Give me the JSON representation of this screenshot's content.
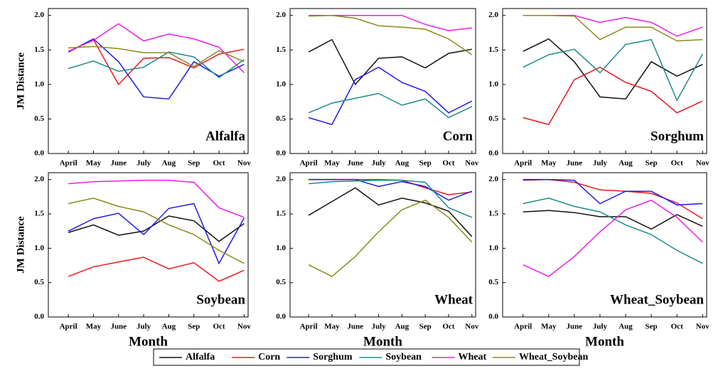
{
  "chart_data": [
    {
      "type": "line",
      "title": "Alfalfa",
      "ylabel": "JM Distance",
      "categories": [
        "April",
        "May",
        "June",
        "July",
        "Aug",
        "Sep",
        "Oct",
        "Nov"
      ],
      "ylim": [
        0,
        2.1
      ],
      "yticks": [
        {
          "value": 0,
          "label": "0.0"
        },
        {
          "value": 0.5,
          "label": "0.5"
        },
        {
          "value": 1,
          "label": "1.0"
        },
        {
          "value": 1.5,
          "label": "1.5"
        },
        {
          "value": 2,
          "label": "2.0"
        }
      ],
      "series": [
        {
          "name": "Corn",
          "color": "#e8191d",
          "values": [
            1.47,
            1.65,
            1.0,
            1.38,
            1.39,
            1.24,
            1.44,
            1.51
          ]
        },
        {
          "name": "Sorghum",
          "color": "#1d1de8",
          "values": [
            1.47,
            1.66,
            1.33,
            0.82,
            0.79,
            1.33,
            1.12,
            1.29
          ]
        },
        {
          "name": "Soybean",
          "color": "#1f8a8a",
          "values": [
            1.23,
            1.34,
            1.19,
            1.25,
            1.47,
            1.4,
            1.1,
            1.36
          ]
        },
        {
          "name": "Wheat",
          "color": "#ea1dea",
          "values": [
            1.48,
            1.64,
            1.88,
            1.63,
            1.73,
            1.66,
            1.54,
            1.17
          ]
        },
        {
          "name": "Wheat_Soybean",
          "color": "#8a8a1c",
          "values": [
            1.53,
            1.55,
            1.52,
            1.46,
            1.46,
            1.26,
            1.49,
            1.33
          ]
        }
      ]
    },
    {
      "type": "line",
      "title": "Corn",
      "categories": [
        "April",
        "May",
        "June",
        "July",
        "Aug",
        "Sep",
        "Oct",
        "Nov"
      ],
      "ylim": [
        0,
        2.1
      ],
      "yticks": [
        {
          "value": 0,
          "label": "0.0"
        },
        {
          "value": 0.5,
          "label": "0.5"
        },
        {
          "value": 1,
          "label": "1.0"
        },
        {
          "value": 1.5,
          "label": "1.5"
        },
        {
          "value": 2,
          "label": "2.0"
        }
      ],
      "series": [
        {
          "name": "Alfalfa",
          "color": "#111111",
          "values": [
            1.47,
            1.65,
            1.0,
            1.38,
            1.4,
            1.24,
            1.45,
            1.51
          ]
        },
        {
          "name": "Sorghum",
          "color": "#1d1de8",
          "values": [
            0.52,
            0.42,
            1.07,
            1.25,
            1.03,
            0.9,
            0.59,
            0.76
          ]
        },
        {
          "name": "Soybean",
          "color": "#1f8a8a",
          "values": [
            0.59,
            0.73,
            0.8,
            0.87,
            0.7,
            0.79,
            0.52,
            0.68
          ]
        },
        {
          "name": "Wheat",
          "color": "#ea1dea",
          "values": [
            2.0,
            2.0,
            2.0,
            2.0,
            2.0,
            1.87,
            1.78,
            1.82
          ]
        },
        {
          "name": "Wheat_Soybean",
          "color": "#8a8a1c",
          "values": [
            1.99,
            2.0,
            1.96,
            1.85,
            1.83,
            1.8,
            1.66,
            1.43
          ]
        }
      ]
    },
    {
      "type": "line",
      "title": "Sorghum",
      "categories": [
        "April",
        "May",
        "June",
        "July",
        "Aug",
        "Sep",
        "Oct",
        "Nov"
      ],
      "ylim": [
        0,
        2.1
      ],
      "yticks": [
        {
          "value": 0,
          "label": "0.0"
        },
        {
          "value": 0.5,
          "label": "0.5"
        },
        {
          "value": 1,
          "label": "1.0"
        },
        {
          "value": 1.5,
          "label": "1.5"
        },
        {
          "value": 2,
          "label": "2.0"
        }
      ],
      "series": [
        {
          "name": "Alfalfa",
          "color": "#111111",
          "values": [
            1.48,
            1.66,
            1.33,
            0.82,
            0.79,
            1.33,
            1.12,
            1.29
          ]
        },
        {
          "name": "Corn",
          "color": "#e8191d",
          "values": [
            0.52,
            0.42,
            1.07,
            1.25,
            1.03,
            0.9,
            0.59,
            0.76
          ]
        },
        {
          "name": "Soybean",
          "color": "#1f8a8a",
          "values": [
            1.25,
            1.43,
            1.51,
            1.17,
            1.58,
            1.65,
            0.77,
            1.44
          ]
        },
        {
          "name": "Wheat",
          "color": "#ea1dea",
          "values": [
            2.0,
            2.0,
            2.0,
            1.9,
            1.97,
            1.9,
            1.7,
            1.83
          ]
        },
        {
          "name": "Wheat_Soybean",
          "color": "#8a8a1c",
          "values": [
            2.0,
            2.0,
            1.99,
            1.65,
            1.83,
            1.83,
            1.63,
            1.65
          ]
        }
      ]
    },
    {
      "type": "line",
      "title": "Soybean",
      "ylabel": "JM Distance",
      "xlabel": "Month",
      "categories": [
        "April",
        "May",
        "June",
        "July",
        "Aug",
        "Sep",
        "Oct",
        "Nov"
      ],
      "ylim": [
        0,
        2.1
      ],
      "yticks": [
        {
          "value": 0,
          "label": "0.0"
        },
        {
          "value": 0.5,
          "label": "0.5"
        },
        {
          "value": 1,
          "label": "1.0"
        },
        {
          "value": 1.5,
          "label": "1.5"
        },
        {
          "value": 2,
          "label": "2.0"
        }
      ],
      "series": [
        {
          "name": "Alfalfa",
          "color": "#111111",
          "values": [
            1.23,
            1.34,
            1.19,
            1.25,
            1.47,
            1.4,
            1.1,
            1.36
          ]
        },
        {
          "name": "Corn",
          "color": "#e8191d",
          "values": [
            0.59,
            0.73,
            0.8,
            0.87,
            0.7,
            0.79,
            0.52,
            0.68
          ]
        },
        {
          "name": "Sorghum",
          "color": "#1d1de8",
          "values": [
            1.25,
            1.43,
            1.51,
            1.2,
            1.58,
            1.65,
            0.78,
            1.44
          ]
        },
        {
          "name": "Wheat",
          "color": "#ea1dea",
          "values": [
            1.94,
            1.97,
            1.98,
            1.99,
            1.99,
            1.96,
            1.59,
            1.45
          ]
        },
        {
          "name": "Wheat_Soybean",
          "color": "#8a8a1c",
          "values": [
            1.65,
            1.73,
            1.61,
            1.53,
            1.34,
            1.2,
            0.97,
            0.78
          ]
        }
      ]
    },
    {
      "type": "line",
      "title": "Wheat",
      "xlabel": "Month",
      "categories": [
        "April",
        "May",
        "June",
        "July",
        "Aug",
        "Sep",
        "Oct",
        "Nov"
      ],
      "ylim": [
        0,
        2.1
      ],
      "yticks": [
        {
          "value": 0,
          "label": "0.0"
        },
        {
          "value": 0.5,
          "label": "0.5"
        },
        {
          "value": 1,
          "label": "1.0"
        },
        {
          "value": 1.5,
          "label": "1.5"
        },
        {
          "value": 2,
          "label": "2.0"
        }
      ],
      "series": [
        {
          "name": "Alfalfa",
          "color": "#111111",
          "values": [
            1.48,
            1.68,
            1.88,
            1.63,
            1.73,
            1.66,
            1.54,
            1.17
          ]
        },
        {
          "name": "Corn",
          "color": "#e8191d",
          "values": [
            2.0,
            2.0,
            2.0,
            2.0,
            1.99,
            1.88,
            1.78,
            1.82
          ]
        },
        {
          "name": "Sorghum",
          "color": "#1d1de8",
          "values": [
            2.0,
            2.0,
            2.0,
            1.9,
            1.97,
            1.9,
            1.7,
            1.83
          ]
        },
        {
          "name": "Soybean",
          "color": "#1f8a8a",
          "values": [
            1.94,
            1.97,
            1.98,
            1.99,
            1.99,
            1.96,
            1.59,
            1.45
          ]
        },
        {
          "name": "Wheat_Soybean",
          "color": "#8a8a1c",
          "values": [
            0.76,
            0.59,
            0.88,
            1.24,
            1.56,
            1.7,
            1.45,
            1.09
          ]
        }
      ]
    },
    {
      "type": "line",
      "title": "Wheat_Soybean",
      "xlabel": "Month",
      "categories": [
        "April",
        "May",
        "June",
        "July",
        "Aug",
        "Sep",
        "Oct",
        "Nov"
      ],
      "ylim": [
        0,
        2.1
      ],
      "yticks": [
        {
          "value": 0,
          "label": "0.0"
        },
        {
          "value": 0.5,
          "label": "0.5"
        },
        {
          "value": 1,
          "label": "1.0"
        },
        {
          "value": 1.5,
          "label": "1.5"
        },
        {
          "value": 2,
          "label": "2.0"
        }
      ],
      "series": [
        {
          "name": "Alfalfa",
          "color": "#111111",
          "values": [
            1.53,
            1.55,
            1.52,
            1.46,
            1.46,
            1.28,
            1.49,
            1.32
          ]
        },
        {
          "name": "Corn",
          "color": "#e8191d",
          "values": [
            1.99,
            2.0,
            1.96,
            1.85,
            1.83,
            1.8,
            1.66,
            1.43
          ]
        },
        {
          "name": "Sorghum",
          "color": "#1d1de8",
          "values": [
            2.0,
            2.0,
            1.99,
            1.65,
            1.83,
            1.83,
            1.63,
            1.65
          ]
        },
        {
          "name": "Soybean",
          "color": "#1f8a8a",
          "values": [
            1.65,
            1.73,
            1.61,
            1.53,
            1.34,
            1.2,
            0.97,
            0.78
          ]
        },
        {
          "name": "Wheat",
          "color": "#ea1dea",
          "values": [
            0.76,
            0.59,
            0.88,
            1.24,
            1.56,
            1.7,
            1.45,
            1.09
          ]
        }
      ]
    }
  ],
  "legend": [
    {
      "name": "Alfalfa",
      "color": "#111111"
    },
    {
      "name": "Corn",
      "color": "#e8191d"
    },
    {
      "name": "Sorghum",
      "color": "#1d1de8"
    },
    {
      "name": "Soybean",
      "color": "#1f8a8a"
    },
    {
      "name": "Wheat",
      "color": "#ea1dea"
    },
    {
      "name": "Wheat_Soybean",
      "color": "#8a8a1c"
    }
  ]
}
